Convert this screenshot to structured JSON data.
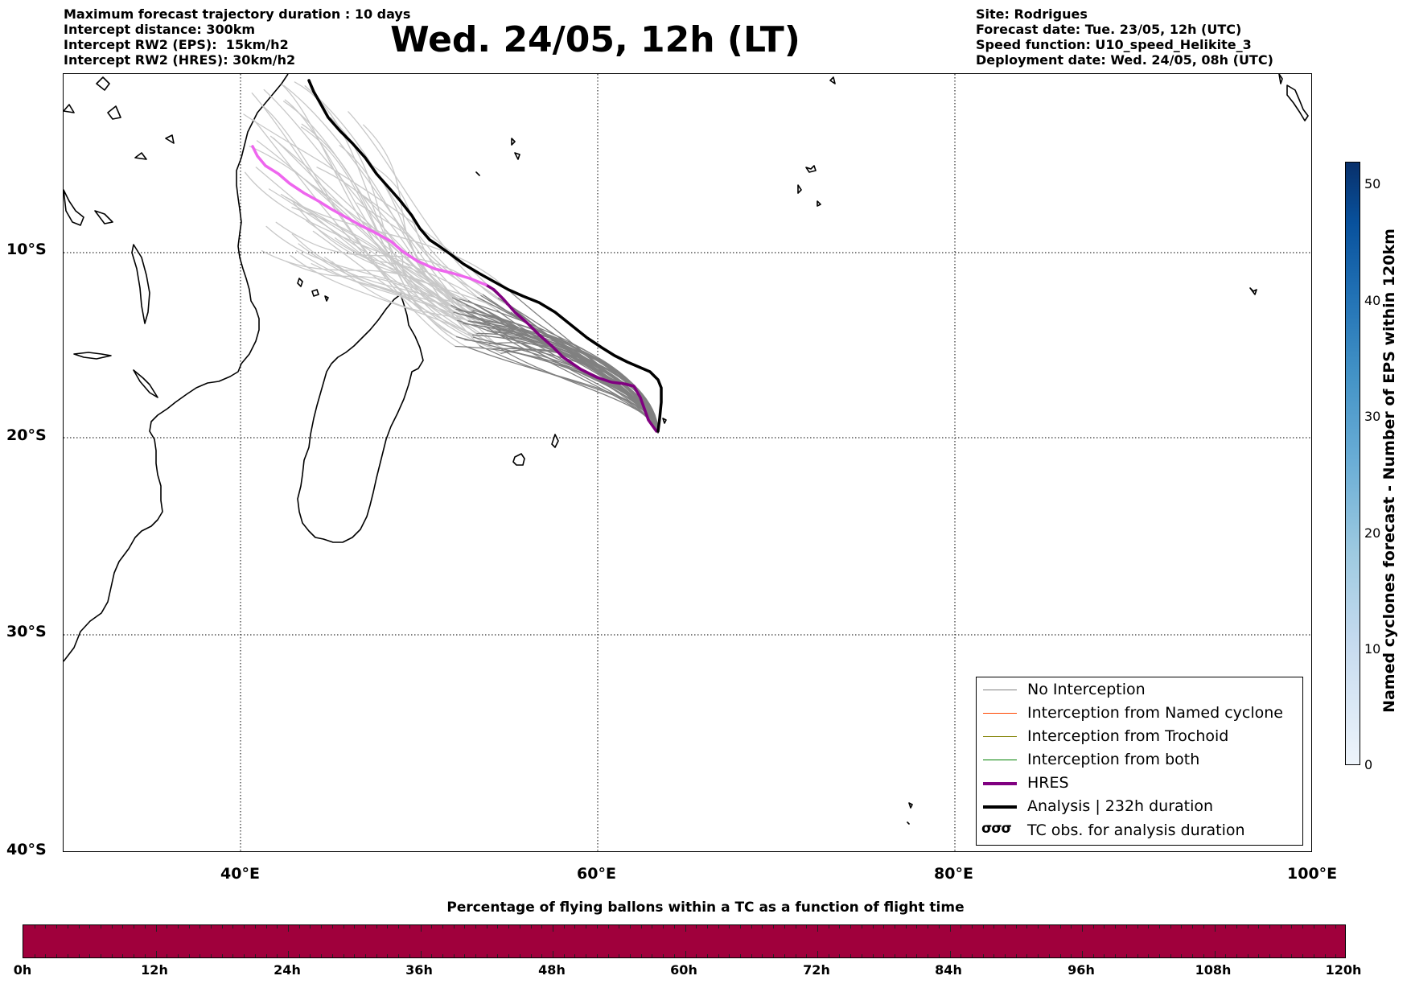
{
  "header_left": [
    "Maximum forecast trajectory duration : 10 days",
    "Intercept distance: 300km",
    "Intercept RW2 (EPS):  15km/h2",
    "Intercept RW2 (HRES): 30km/h2"
  ],
  "title": "Wed. 24/05, 12h (LT)",
  "header_right": [
    "Site: Rodrigues",
    "Forecast date: Tue. 23/05, 12h (UTC)",
    "Speed function: U10_speed_Helikite_3",
    "Deployment date: Wed. 24/05, 08h (UTC)"
  ],
  "map": {
    "lon_range": [
      30,
      100
    ],
    "lat_range": [
      -40,
      0
    ],
    "lat_labels": [
      "10°S",
      "20°S",
      "30°S",
      "40°S"
    ],
    "lon_labels": [
      "40°E",
      "60°E",
      "80°E",
      "100°E"
    ],
    "grid": "dotted",
    "colors": {
      "no_interception": "#808080",
      "named_cyclone": "#ff4500",
      "trochoid": "#808000",
      "both": "#008000",
      "hres": "#800080",
      "hres_early": "#ee66ee",
      "analysis": "#000000",
      "early_member": "#c8c8c8"
    }
  },
  "legend": {
    "items": [
      "No Interception",
      "Interception from Named cyclone",
      "Interception from Trochoid",
      "Interception from both",
      "HRES",
      "Analysis | 232h duration",
      "TC obs. for analysis duration"
    ],
    "tc_symbol": "σσσ"
  },
  "colorbar": {
    "label": "Named cyclones forecast - Number of EPS within 120km",
    "ticks": [
      "0",
      "10",
      "20",
      "30",
      "40",
      "50"
    ],
    "range": [
      0,
      52
    ]
  },
  "percentage_bar": {
    "title": "Percentage of flying ballons within a TC as a function of flight time",
    "labels": [
      "0h",
      "12h",
      "24h",
      "36h",
      "48h",
      "60h",
      "72h",
      "84h",
      "96h",
      "108h",
      "120h"
    ],
    "color": "#a0003c"
  }
}
